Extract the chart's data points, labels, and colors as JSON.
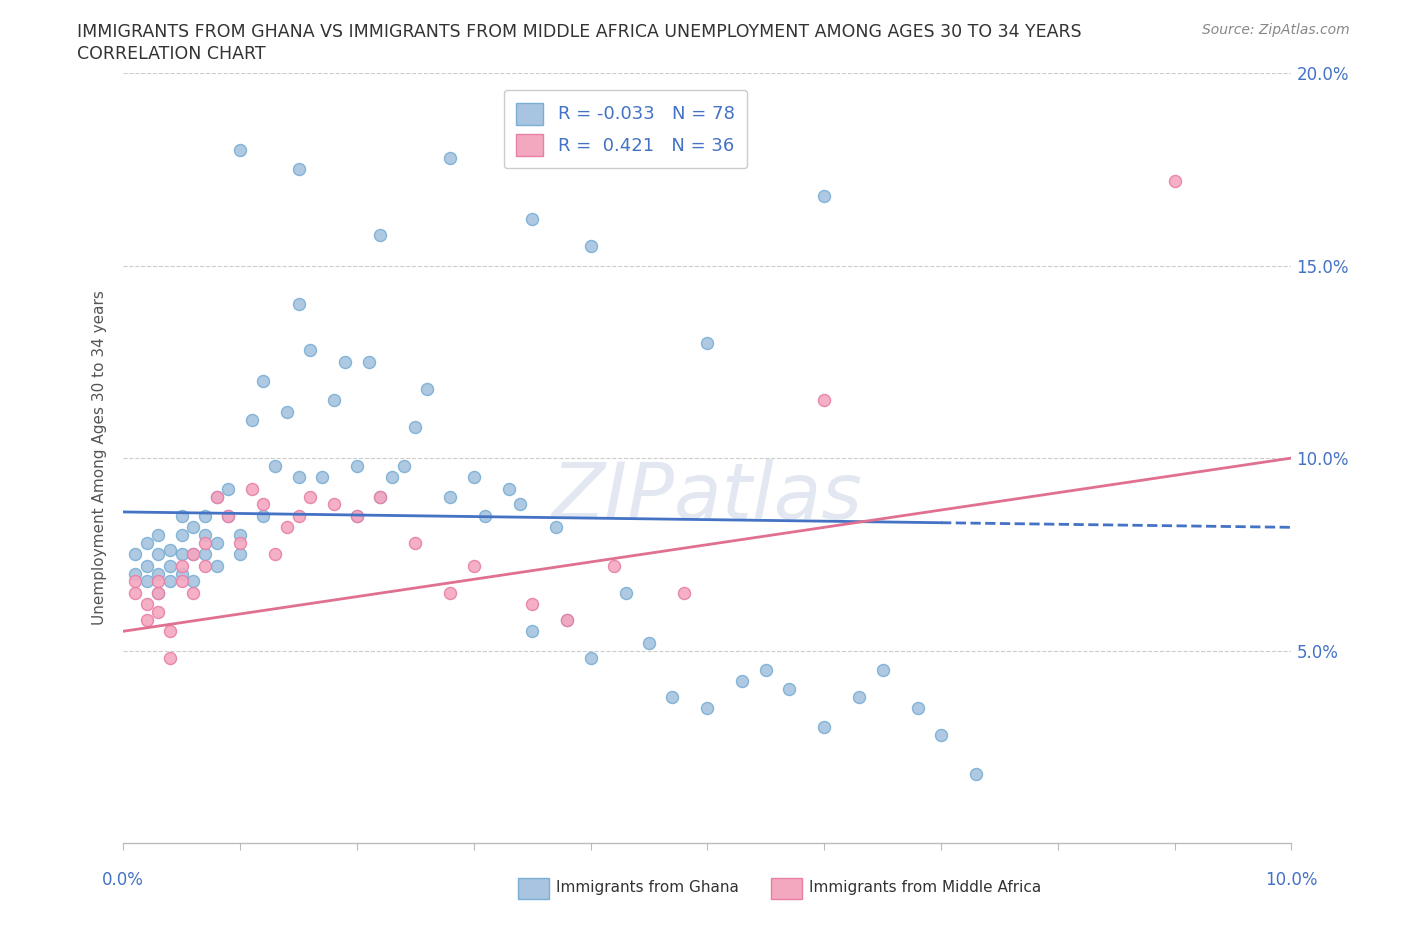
{
  "title_line1": "IMMIGRANTS FROM GHANA VS IMMIGRANTS FROM MIDDLE AFRICA UNEMPLOYMENT AMONG AGES 30 TO 34 YEARS",
  "title_line2": "CORRELATION CHART",
  "source": "Source: ZipAtlas.com",
  "ylabel": "Unemployment Among Ages 30 to 34 years",
  "xlim": [
    0.0,
    0.1
  ],
  "ylim": [
    0.0,
    0.2
  ],
  "yticks": [
    0.05,
    0.1,
    0.15,
    0.2
  ],
  "ytick_labels": [
    "5.0%",
    "10.0%",
    "15.0%",
    "20.0%"
  ],
  "color_ghana": "#a8c4e0",
  "color_ghana_edge": "#7aafd4",
  "color_middle_africa": "#f4a8c0",
  "color_middle_africa_edge": "#e87fa8",
  "color_ghana_line": "#4472c4",
  "color_middle_africa_line": "#e07090",
  "watermark": "ZIPatlas",
  "ghana_x": [
    0.001,
    0.001,
    0.002,
    0.002,
    0.002,
    0.003,
    0.003,
    0.003,
    0.003,
    0.004,
    0.004,
    0.004,
    0.005,
    0.005,
    0.005,
    0.005,
    0.006,
    0.006,
    0.006,
    0.007,
    0.007,
    0.007,
    0.008,
    0.008,
    0.008,
    0.009,
    0.009,
    0.01,
    0.01,
    0.011,
    0.012,
    0.012,
    0.013,
    0.014,
    0.015,
    0.015,
    0.016,
    0.017,
    0.018,
    0.019,
    0.02,
    0.02,
    0.021,
    0.022,
    0.023,
    0.024,
    0.025,
    0.026,
    0.028,
    0.03,
    0.031,
    0.033,
    0.034,
    0.035,
    0.037,
    0.038,
    0.04,
    0.043,
    0.045,
    0.047,
    0.05,
    0.053,
    0.055,
    0.057,
    0.06,
    0.063,
    0.065,
    0.068,
    0.07,
    0.073,
    0.035,
    0.04,
    0.05,
    0.06,
    0.028,
    0.022,
    0.015,
    0.01
  ],
  "ghana_y": [
    0.07,
    0.075,
    0.068,
    0.072,
    0.078,
    0.065,
    0.07,
    0.075,
    0.08,
    0.068,
    0.072,
    0.076,
    0.07,
    0.075,
    0.08,
    0.085,
    0.068,
    0.075,
    0.082,
    0.075,
    0.08,
    0.085,
    0.09,
    0.072,
    0.078,
    0.085,
    0.092,
    0.075,
    0.08,
    0.11,
    0.12,
    0.085,
    0.098,
    0.112,
    0.14,
    0.095,
    0.128,
    0.095,
    0.115,
    0.125,
    0.085,
    0.098,
    0.125,
    0.09,
    0.095,
    0.098,
    0.108,
    0.118,
    0.09,
    0.095,
    0.085,
    0.092,
    0.088,
    0.055,
    0.082,
    0.058,
    0.048,
    0.065,
    0.052,
    0.038,
    0.035,
    0.042,
    0.045,
    0.04,
    0.03,
    0.038,
    0.045,
    0.035,
    0.028,
    0.018,
    0.162,
    0.155,
    0.13,
    0.168,
    0.178,
    0.158,
    0.175,
    0.18
  ],
  "middle_africa_x": [
    0.001,
    0.001,
    0.002,
    0.002,
    0.003,
    0.003,
    0.003,
    0.004,
    0.004,
    0.005,
    0.005,
    0.006,
    0.006,
    0.007,
    0.007,
    0.008,
    0.009,
    0.01,
    0.011,
    0.012,
    0.013,
    0.014,
    0.015,
    0.016,
    0.018,
    0.02,
    0.022,
    0.025,
    0.028,
    0.03,
    0.035,
    0.038,
    0.042,
    0.048,
    0.06,
    0.09
  ],
  "middle_africa_y": [
    0.065,
    0.068,
    0.062,
    0.058,
    0.06,
    0.065,
    0.068,
    0.055,
    0.048,
    0.072,
    0.068,
    0.075,
    0.065,
    0.072,
    0.078,
    0.09,
    0.085,
    0.078,
    0.092,
    0.088,
    0.075,
    0.082,
    0.085,
    0.09,
    0.088,
    0.085,
    0.09,
    0.078,
    0.065,
    0.072,
    0.062,
    0.058,
    0.072,
    0.065,
    0.115,
    0.172
  ],
  "ghana_line_x": [
    0.0,
    0.1
  ],
  "ghana_line_y": [
    0.086,
    0.082
  ],
  "middle_africa_line_x": [
    0.0,
    0.1
  ],
  "middle_africa_line_y": [
    0.055,
    0.1
  ]
}
